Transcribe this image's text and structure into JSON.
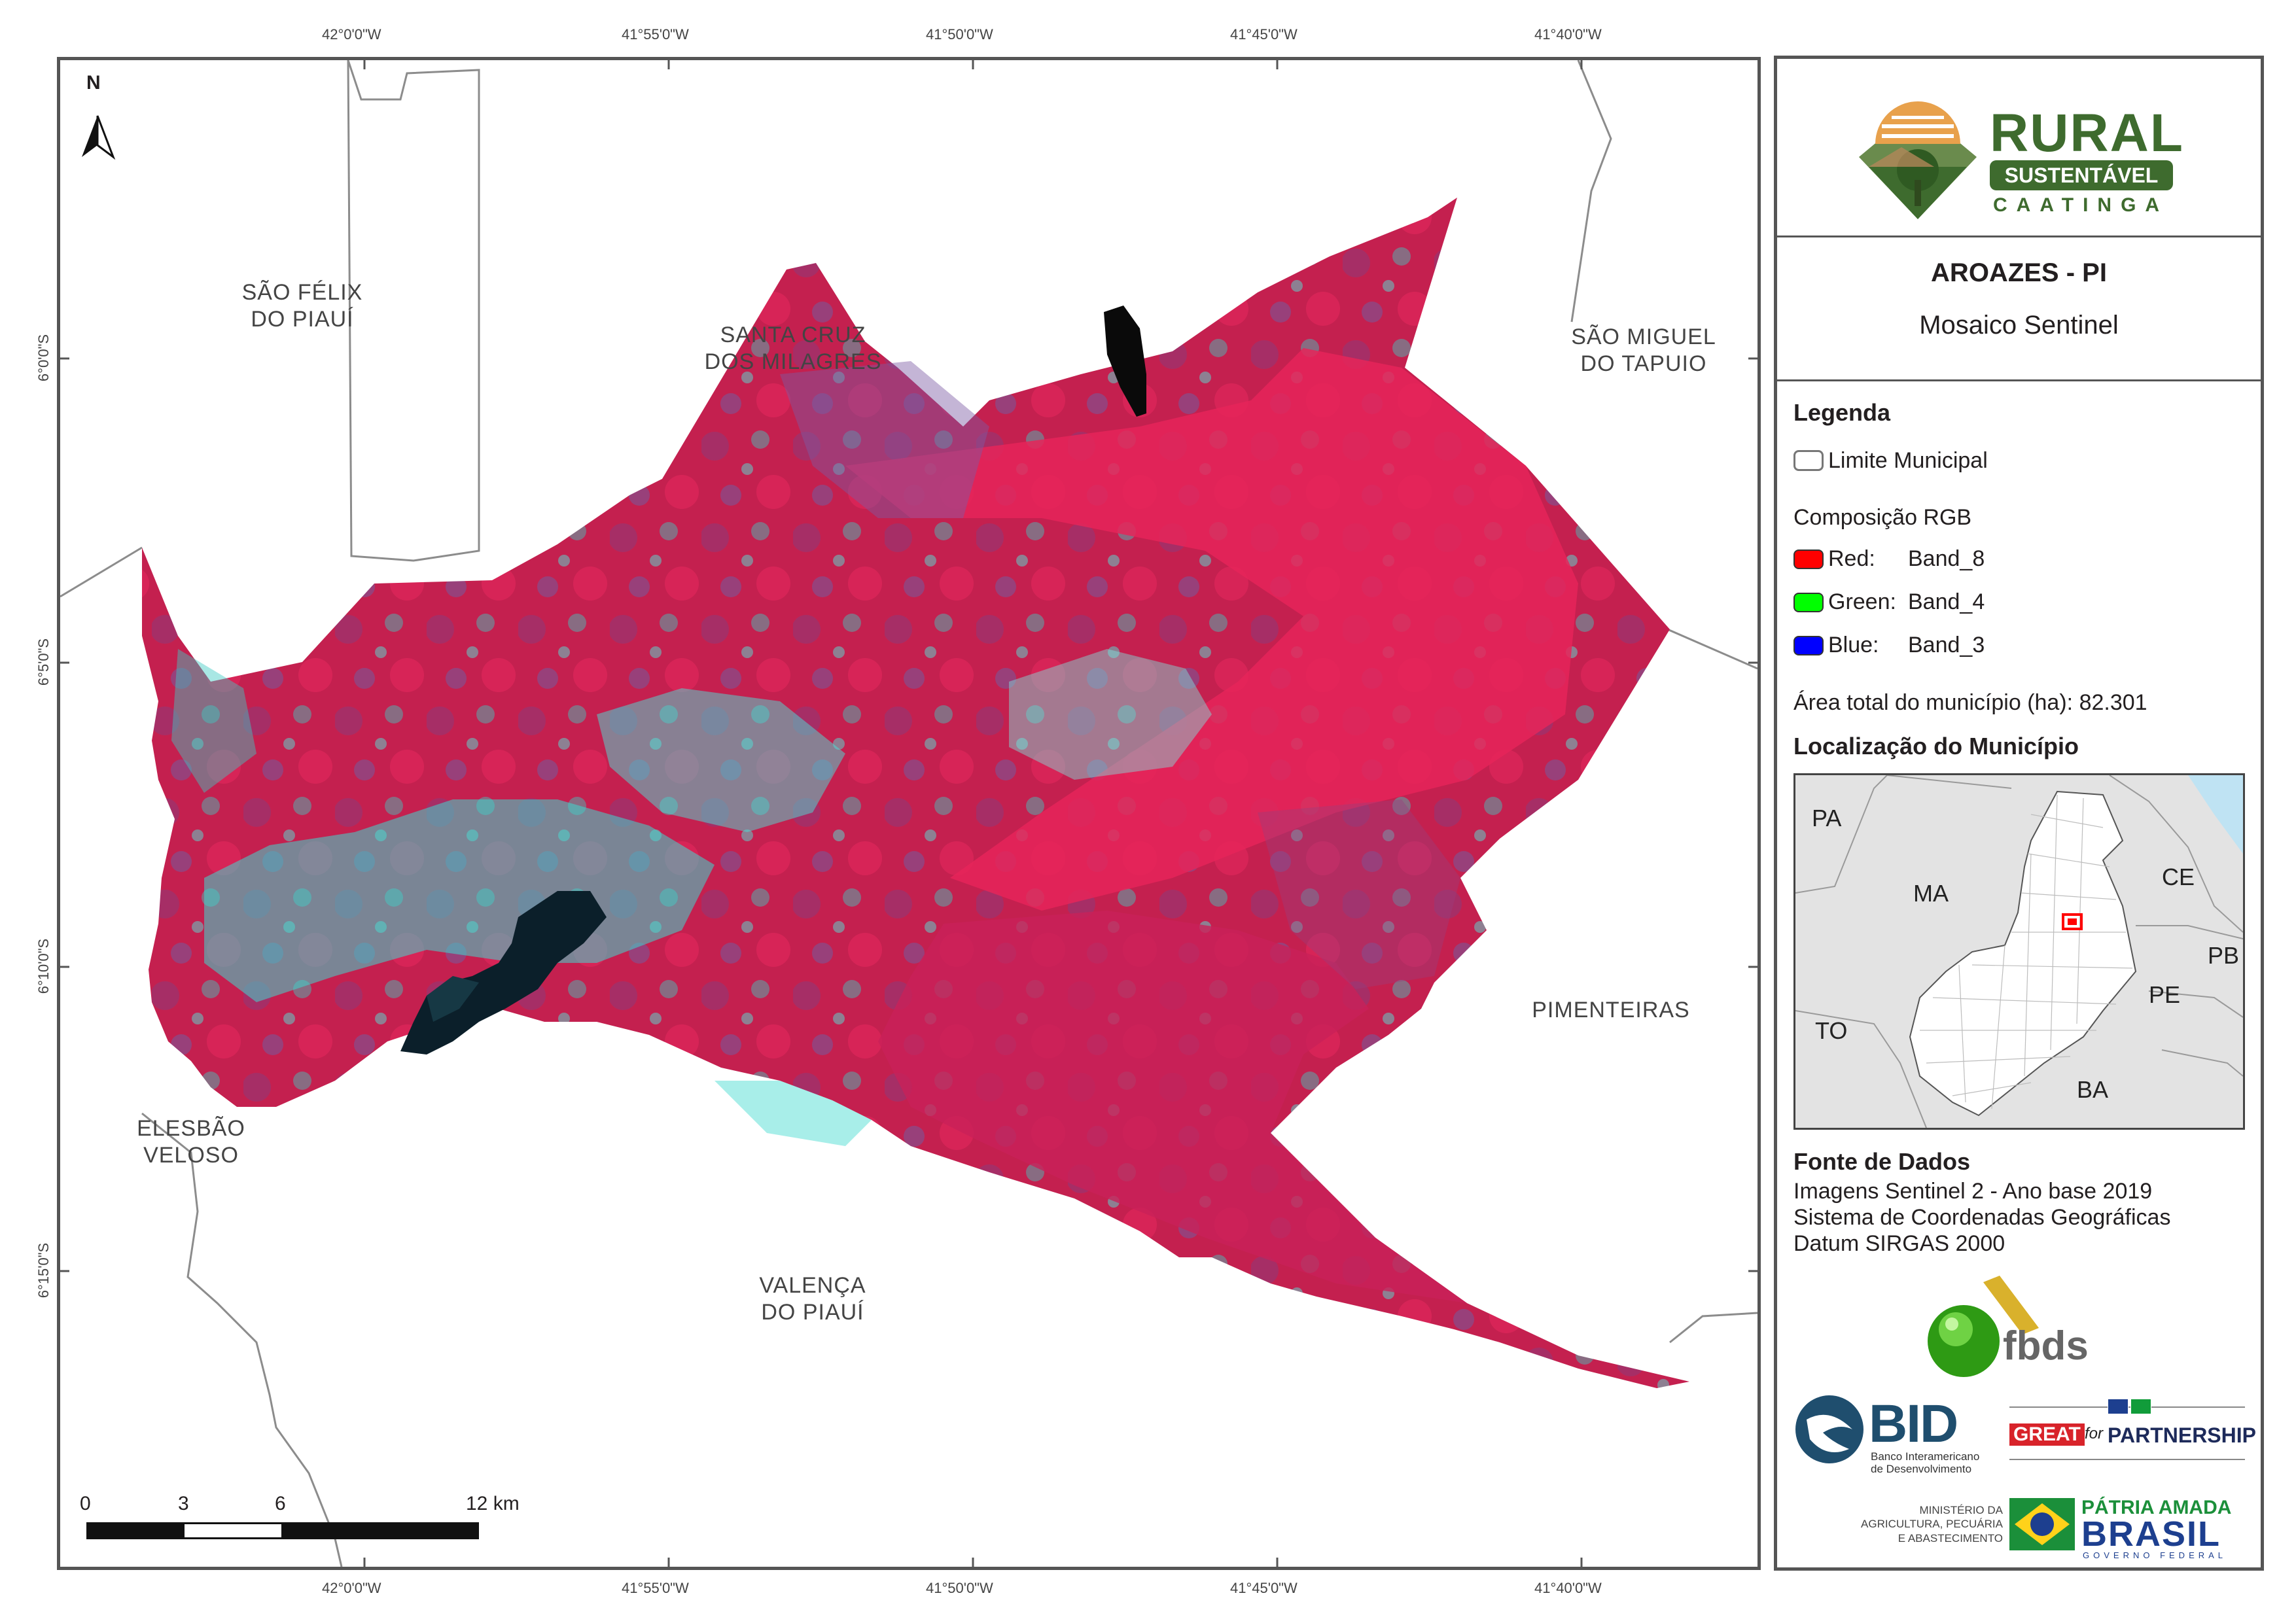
{
  "map": {
    "coords_top": [
      "42°0'0\"W",
      "41°55'0\"W",
      "41°50'0\"W",
      "41°45'0\"W",
      "41°40'0\"W"
    ],
    "coords_bottom": [
      "42°0'0\"W",
      "41°55'0\"W",
      "41°50'0\"W",
      "41°45'0\"W",
      "41°40'0\"W"
    ],
    "coords_left": [
      "6°0'0\"S",
      "6°5'0\"S",
      "6°10'0\"S",
      "6°15'0\"S"
    ],
    "municipalities": {
      "sao_felix": [
        "SÃO FÉLIX",
        "DO PIAUÍ"
      ],
      "santa_cruz": [
        "SANTA CRUZ",
        "DOS MILAGRES"
      ],
      "sao_miguel": [
        "SÃO MIGUEL",
        "DO TAPUIO"
      ],
      "pimenteiras": [
        "PIMENTEIRAS"
      ],
      "elesbao": [
        "ELESBÃO",
        "VELOSO"
      ],
      "valenca": [
        "VALENÇA",
        "DO PIAUÍ"
      ]
    },
    "north_label": "N",
    "scale": {
      "labels": [
        "0",
        "3",
        "6",
        "12 km"
      ]
    },
    "colors": {
      "vegetation": "#d01e55",
      "water": "#0b1f2a",
      "bare": "#35d6cf",
      "boundary": "#7a7a7a"
    }
  },
  "panel": {
    "logo": {
      "word1": "RURAL",
      "word2": "SUSTENTÁVEL",
      "word3": "CAATINGA",
      "color": "#3e6b2e"
    },
    "title": "AROAZES - PI",
    "subtitle": "Mosaico Sentinel",
    "legend": {
      "heading": "Legenda",
      "limit_label": "Limite Municipal",
      "rgb_heading": "Composição RGB",
      "bands": [
        {
          "name": "Red:",
          "band": "Band_8",
          "color": "#ff0000"
        },
        {
          "name": "Green:",
          "band": "Band_4",
          "color": "#00ff00"
        },
        {
          "name": "Blue:",
          "band": "Band_3",
          "color": "#0000ff"
        }
      ],
      "area_label": "Área total do município (ha):",
      "area_value": "82.301"
    },
    "location": {
      "heading": "Localização do Município",
      "states": [
        "PA",
        "MA",
        "CE",
        "PB",
        "PE",
        "TO",
        "BA"
      ]
    },
    "sources": {
      "heading": "Fonte de Dados",
      "lines": [
        "Imagens Sentinel 2 - Ano base 2019",
        "Sistema de Coordenadas Geográficas",
        "Datum SIRGAS 2000"
      ]
    },
    "partners": {
      "fbds": "fbds",
      "bid": "BID",
      "bid_sub": [
        "Banco Interamericano",
        "de Desenvolvimento"
      ],
      "great": "GREAT",
      "great_for": "for",
      "great_partner": "PARTNERSHIP",
      "ministry": [
        "MINISTÉRIO DA",
        "AGRICULTURA, PECUÁRIA",
        "E ABASTECIMENTO"
      ],
      "patria1": "PÁTRIA AMADA",
      "patria2": "BRASIL",
      "patria3": "GOVERNO FEDERAL"
    }
  }
}
